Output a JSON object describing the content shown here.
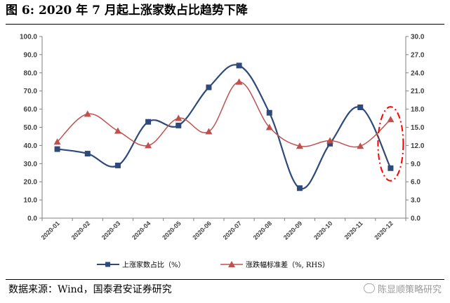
{
  "title": "图 6:  2020 年 7 月起上涨家数占比趋势下降",
  "source": "数据来源：Wind，国泰君安证券研究",
  "watermark": "陈显顺策略研究",
  "chart_data": {
    "type": "line",
    "categories": [
      "2020-01",
      "2020-02",
      "2020-03",
      "2020-04",
      "2020-05",
      "2020-06",
      "2020-07",
      "2020-08",
      "2020-09",
      "2020-10",
      "2020-11",
      "2020-12"
    ],
    "ylim": [
      0,
      100
    ],
    "y2lim": [
      0,
      30
    ],
    "yticks": [
      "0.0",
      "10.0",
      "20.0",
      "30.0",
      "40.0",
      "50.0",
      "60.0",
      "70.0",
      "80.0",
      "90.0",
      "100.0"
    ],
    "y2ticks": [
      "0.0",
      "3.0",
      "6.0",
      "9.0",
      "12.0",
      "15.0",
      "18.0",
      "21.0",
      "24.0",
      "27.0",
      "30.0"
    ],
    "legend_position": "bottom",
    "series": [
      {
        "name": "上涨家数占比（%）",
        "axis": "left",
        "color": "#2e4a7a",
        "marker": "square",
        "values": [
          38,
          35.5,
          29,
          53,
          51,
          72,
          84,
          58,
          16.5,
          41,
          61,
          27.5
        ]
      },
      {
        "name": "涨跌幅标准差（%, RHS）",
        "axis": "right",
        "color": "#c0504d",
        "marker": "triangle",
        "values": [
          12.6,
          17.2,
          14.4,
          12.0,
          16.5,
          14.3,
          22.5,
          15.0,
          11.9,
          12.8,
          11.9,
          16.3
        ]
      }
    ],
    "annotation": {
      "type": "dashed-ellipse",
      "color": "#ff0000",
      "target_category": "2020-12"
    }
  }
}
